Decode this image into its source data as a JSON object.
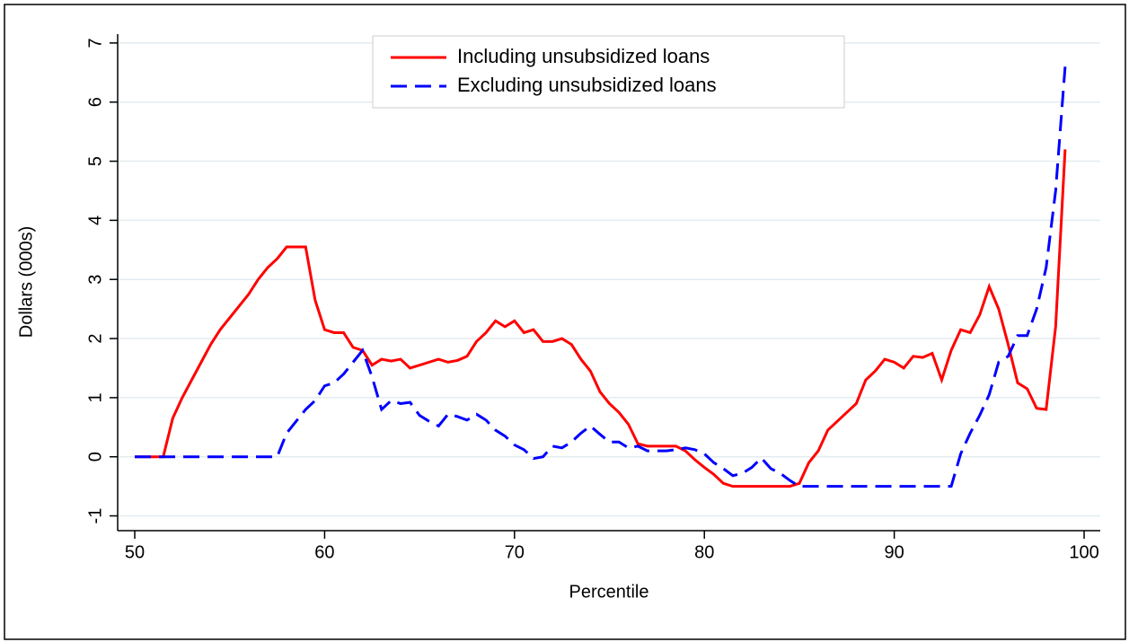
{
  "chart_data": {
    "type": "line",
    "x_label": "Percentile",
    "y_label": "Dollars (000s)",
    "x": [
      50,
      50.5,
      51,
      51.5,
      52,
      52.5,
      53,
      53.5,
      54,
      54.5,
      55,
      55.5,
      56,
      56.5,
      57,
      57.5,
      58,
      58.5,
      59,
      59.5,
      60,
      60.5,
      61,
      61.5,
      62,
      62.5,
      63,
      63.5,
      64,
      64.5,
      65,
      65.5,
      66,
      66.5,
      67,
      67.5,
      68,
      68.5,
      69,
      69.5,
      70,
      70.5,
      71,
      71.5,
      72,
      72.5,
      73,
      73.5,
      74,
      74.5,
      75,
      75.5,
      76,
      76.5,
      77,
      77.5,
      78,
      78.5,
      79,
      79.5,
      80,
      80.5,
      81,
      81.5,
      82,
      82.5,
      83,
      83.5,
      84,
      84.5,
      85,
      85.5,
      86,
      86.5,
      87,
      87.5,
      88,
      88.5,
      89,
      89.5,
      90,
      90.5,
      91,
      91.5,
      92,
      92.5,
      93,
      93.5,
      94,
      94.5,
      95,
      95.5,
      96,
      96.5,
      97,
      97.5,
      98,
      98.5,
      99
    ],
    "series": [
      {
        "name": "Including unsubsidized loans",
        "color": "#ff0000",
        "dash": "none",
        "values": [
          0,
          0,
          0,
          0,
          0.65,
          1.0,
          1.3,
          1.6,
          1.9,
          2.15,
          2.35,
          2.55,
          2.75,
          3.0,
          3.2,
          3.35,
          3.55,
          3.55,
          3.55,
          2.65,
          2.15,
          2.1,
          2.1,
          1.85,
          1.8,
          1.55,
          1.65,
          1.62,
          1.65,
          1.5,
          1.55,
          1.6,
          1.65,
          1.6,
          1.63,
          1.7,
          1.95,
          2.1,
          2.3,
          2.2,
          2.3,
          2.1,
          2.15,
          1.95,
          1.95,
          2.0,
          1.9,
          1.65,
          1.45,
          1.1,
          0.9,
          0.75,
          0.55,
          0.22,
          0.18,
          0.18,
          0.18,
          0.18,
          0.1,
          -0.05,
          -0.18,
          -0.3,
          -0.45,
          -0.5,
          -0.5,
          -0.5,
          -0.5,
          -0.5,
          -0.5,
          -0.5,
          -0.45,
          -0.1,
          0.1,
          0.45,
          0.6,
          0.75,
          0.9,
          1.3,
          1.45,
          1.65,
          1.6,
          1.5,
          1.7,
          1.68,
          1.75,
          1.3,
          1.8,
          2.15,
          2.1,
          2.4,
          2.88,
          2.5,
          1.9,
          1.25,
          1.15,
          0.82,
          0.8,
          2.2,
          5.2
        ]
      },
      {
        "name": "Excluding unsubsidized loans",
        "color": "#0000ff",
        "dash": "18 9",
        "values": [
          0,
          0,
          0,
          0,
          0,
          0,
          0,
          0,
          0,
          0,
          0,
          0,
          0,
          0,
          0,
          0,
          0.4,
          0.6,
          0.8,
          0.95,
          1.2,
          1.25,
          1.4,
          1.6,
          1.8,
          1.35,
          0.8,
          0.95,
          0.9,
          0.92,
          0.7,
          0.6,
          0.52,
          0.72,
          0.68,
          0.62,
          0.72,
          0.62,
          0.45,
          0.35,
          0.2,
          0.12,
          -0.03,
          0,
          0.18,
          0.15,
          0.25,
          0.4,
          0.52,
          0.38,
          0.25,
          0.25,
          0.15,
          0.18,
          0.1,
          0.1,
          0.1,
          0.12,
          0.15,
          0.12,
          0.05,
          -0.1,
          -0.2,
          -0.32,
          -0.28,
          -0.18,
          -0.02,
          -0.2,
          -0.28,
          -0.4,
          -0.5,
          -0.5,
          -0.5,
          -0.5,
          -0.5,
          -0.5,
          -0.5,
          -0.5,
          -0.5,
          -0.5,
          -0.5,
          -0.5,
          -0.5,
          -0.5,
          -0.5,
          -0.5,
          -0.5,
          0.05,
          0.4,
          0.7,
          1.05,
          1.6,
          1.7,
          2.05,
          2.05,
          2.5,
          3.2,
          4.5,
          6.6
        ]
      }
    ],
    "xlim": [
      49.1,
      100.85
    ],
    "xticks": [
      50,
      60,
      70,
      80,
      90,
      100
    ],
    "ylim": [
      -1.25,
      7.15
    ],
    "yticks": [
      -1,
      0,
      1,
      2,
      3,
      4,
      5,
      6,
      7
    ],
    "grid": true,
    "legend": "top"
  }
}
